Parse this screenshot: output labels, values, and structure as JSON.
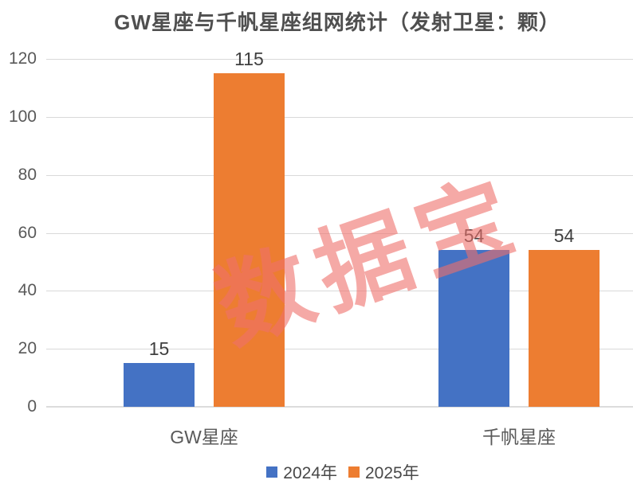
{
  "title": "GW星座与千帆星座组网统计（发射卫星：颗）",
  "watermark": "数据宝",
  "chart_data": {
    "type": "bar",
    "title": "GW星座与千帆星座组网统计（发射卫星：颗）",
    "categories": [
      "GW星座",
      "千帆星座"
    ],
    "series": [
      {
        "name": "2024年",
        "color": "#4472C4",
        "values": [
          15,
          54
        ]
      },
      {
        "name": "2025年",
        "color": "#ED7D31",
        "values": [
          115,
          54
        ]
      }
    ],
    "xlabel": "",
    "ylabel": "",
    "ylim": [
      0,
      120
    ],
    "yticks": [
      0,
      20,
      40,
      60,
      80,
      100,
      120
    ],
    "grid": true,
    "data_labels": true,
    "legend_position": "bottom"
  },
  "colors": {
    "series_2024": "#4472C4",
    "series_2025": "#ED7D31",
    "gridline": "#D9D9D9",
    "title_text": "#4F4F4F",
    "axis_text": "#595959",
    "data_label_text": "#3F3F3F",
    "watermark": "#EF6F6B"
  }
}
